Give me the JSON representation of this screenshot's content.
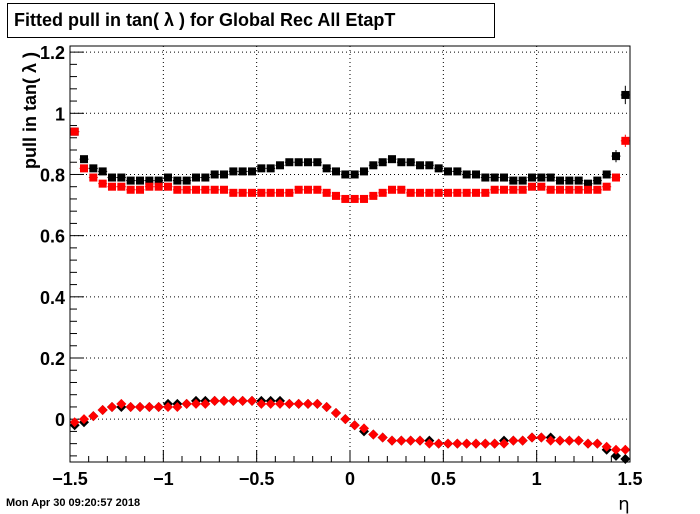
{
  "title": "Fitted pull in tan( λ ) for Global Rec All EtapT",
  "footer": "Mon Apr 30 09:20:57 2018",
  "chart_data": {
    "type": "scatter",
    "xlabel": "η",
    "ylabel": "pull in tan( λ )",
    "xlim": [
      -1.5,
      1.5
    ],
    "ylim": [
      -0.14,
      1.22
    ],
    "xticks": [
      "−1.5",
      "−1",
      "−0.5",
      "0",
      "0.5",
      "1",
      "1.5"
    ],
    "xtick_values": [
      -1.5,
      -1,
      -0.5,
      0,
      0.5,
      1,
      1.5
    ],
    "yticks": [
      "0",
      "0.2",
      "0.4",
      "0.6",
      "0.8",
      "1",
      "1.2"
    ],
    "ytick_values": [
      0,
      0.2,
      0.4,
      0.6,
      0.8,
      1.0,
      1.2
    ],
    "grid": true,
    "x": [
      -1.475,
      -1.425,
      -1.375,
      -1.325,
      -1.275,
      -1.225,
      -1.175,
      -1.125,
      -1.075,
      -1.025,
      -0.975,
      -0.925,
      -0.875,
      -0.825,
      -0.775,
      -0.725,
      -0.675,
      -0.625,
      -0.575,
      -0.525,
      -0.475,
      -0.425,
      -0.375,
      -0.325,
      -0.275,
      -0.225,
      -0.175,
      -0.125,
      -0.075,
      -0.025,
      0.025,
      0.075,
      0.125,
      0.175,
      0.225,
      0.275,
      0.325,
      0.375,
      0.425,
      0.475,
      0.525,
      0.575,
      0.625,
      0.675,
      0.725,
      0.775,
      0.825,
      0.875,
      0.925,
      0.975,
      1.025,
      1.075,
      1.125,
      1.175,
      1.225,
      1.275,
      1.325,
      1.375,
      1.425,
      1.475
    ],
    "series": [
      {
        "marker": "square",
        "color": "#000000",
        "values": [
          0.94,
          0.85,
          0.82,
          0.81,
          0.79,
          0.79,
          0.78,
          0.78,
          0.78,
          0.78,
          0.79,
          0.78,
          0.78,
          0.79,
          0.79,
          0.8,
          0.8,
          0.81,
          0.81,
          0.81,
          0.82,
          0.82,
          0.83,
          0.84,
          0.84,
          0.84,
          0.84,
          0.82,
          0.81,
          0.8,
          0.8,
          0.81,
          0.83,
          0.84,
          0.85,
          0.84,
          0.84,
          0.83,
          0.83,
          0.82,
          0.81,
          0.81,
          0.8,
          0.8,
          0.79,
          0.79,
          0.79,
          0.78,
          0.78,
          0.79,
          0.79,
          0.79,
          0.78,
          0.78,
          0.78,
          0.77,
          0.78,
          0.8,
          0.86,
          1.06
        ],
        "errors": [
          0.01,
          0.01,
          0.01,
          0.01,
          0.01,
          0.01,
          0.01,
          0.01,
          0.01,
          0.01,
          0.01,
          0.01,
          0.01,
          0.01,
          0.01,
          0.01,
          0.01,
          0.01,
          0.01,
          0.01,
          0.01,
          0.01,
          0.01,
          0.01,
          0.01,
          0.01,
          0.01,
          0.01,
          0.01,
          0.01,
          0.01,
          0.01,
          0.01,
          0.01,
          0.01,
          0.01,
          0.01,
          0.01,
          0.01,
          0.01,
          0.01,
          0.01,
          0.01,
          0.01,
          0.01,
          0.01,
          0.01,
          0.01,
          0.01,
          0.01,
          0.01,
          0.01,
          0.01,
          0.01,
          0.01,
          0.01,
          0.01,
          0.01,
          0.02,
          0.03
        ]
      },
      {
        "marker": "square",
        "color": "#ff0000",
        "values": [
          0.94,
          0.82,
          0.79,
          0.77,
          0.76,
          0.76,
          0.75,
          0.75,
          0.76,
          0.76,
          0.76,
          0.75,
          0.75,
          0.75,
          0.75,
          0.75,
          0.75,
          0.74,
          0.74,
          0.74,
          0.74,
          0.74,
          0.74,
          0.74,
          0.75,
          0.75,
          0.75,
          0.74,
          0.73,
          0.72,
          0.72,
          0.72,
          0.73,
          0.74,
          0.75,
          0.75,
          0.74,
          0.74,
          0.74,
          0.74,
          0.74,
          0.74,
          0.74,
          0.74,
          0.74,
          0.75,
          0.75,
          0.75,
          0.75,
          0.76,
          0.76,
          0.75,
          0.75,
          0.75,
          0.75,
          0.75,
          0.75,
          0.76,
          0.79,
          0.91
        ],
        "errors": [
          0.01,
          0.01,
          0.01,
          0.01,
          0.01,
          0.01,
          0.01,
          0.01,
          0.01,
          0.01,
          0.01,
          0.01,
          0.01,
          0.01,
          0.01,
          0.01,
          0.01,
          0.01,
          0.01,
          0.01,
          0.01,
          0.01,
          0.01,
          0.01,
          0.01,
          0.01,
          0.01,
          0.01,
          0.01,
          0.01,
          0.01,
          0.01,
          0.01,
          0.01,
          0.01,
          0.01,
          0.01,
          0.01,
          0.01,
          0.01,
          0.01,
          0.01,
          0.01,
          0.01,
          0.01,
          0.01,
          0.01,
          0.01,
          0.01,
          0.01,
          0.01,
          0.01,
          0.01,
          0.01,
          0.01,
          0.01,
          0.01,
          0.01,
          0.01,
          0.02
        ]
      },
      {
        "marker": "diamond",
        "color": "#000000",
        "values": [
          -0.02,
          -0.01,
          0.01,
          0.03,
          0.04,
          0.04,
          0.04,
          0.04,
          0.04,
          0.04,
          0.05,
          0.05,
          0.05,
          0.06,
          0.06,
          0.06,
          0.06,
          0.06,
          0.06,
          0.06,
          0.06,
          0.06,
          0.06,
          0.05,
          0.05,
          0.05,
          0.05,
          0.04,
          0.02,
          0.0,
          -0.02,
          -0.04,
          -0.05,
          -0.06,
          -0.07,
          -0.07,
          -0.07,
          -0.07,
          -0.07,
          -0.08,
          -0.08,
          -0.08,
          -0.08,
          -0.08,
          -0.08,
          -0.08,
          -0.07,
          -0.07,
          -0.07,
          -0.06,
          -0.06,
          -0.06,
          -0.07,
          -0.07,
          -0.07,
          -0.08,
          -0.08,
          -0.1,
          -0.12,
          -0.13
        ],
        "errors": [
          0.008,
          0.008,
          0.008,
          0.008,
          0.008,
          0.008,
          0.008,
          0.008,
          0.008,
          0.008,
          0.008,
          0.008,
          0.008,
          0.008,
          0.008,
          0.008,
          0.008,
          0.008,
          0.008,
          0.008,
          0.008,
          0.008,
          0.008,
          0.008,
          0.008,
          0.008,
          0.008,
          0.008,
          0.008,
          0.008,
          0.008,
          0.008,
          0.008,
          0.008,
          0.008,
          0.008,
          0.008,
          0.008,
          0.008,
          0.008,
          0.008,
          0.008,
          0.008,
          0.008,
          0.008,
          0.008,
          0.008,
          0.008,
          0.008,
          0.008,
          0.008,
          0.008,
          0.008,
          0.008,
          0.008,
          0.008,
          0.008,
          0.008,
          0.012,
          0.015
        ]
      },
      {
        "marker": "diamond",
        "color": "#ff0000",
        "values": [
          -0.01,
          0.0,
          0.01,
          0.03,
          0.04,
          0.05,
          0.04,
          0.04,
          0.04,
          0.04,
          0.04,
          0.04,
          0.05,
          0.05,
          0.05,
          0.06,
          0.06,
          0.06,
          0.06,
          0.06,
          0.05,
          0.05,
          0.05,
          0.05,
          0.05,
          0.05,
          0.05,
          0.04,
          0.02,
          0.0,
          -0.02,
          -0.03,
          -0.05,
          -0.06,
          -0.07,
          -0.07,
          -0.07,
          -0.07,
          -0.08,
          -0.08,
          -0.08,
          -0.08,
          -0.08,
          -0.08,
          -0.08,
          -0.08,
          -0.08,
          -0.07,
          -0.07,
          -0.06,
          -0.06,
          -0.07,
          -0.07,
          -0.07,
          -0.07,
          -0.08,
          -0.08,
          -0.09,
          -0.1,
          -0.1
        ],
        "errors": [
          0.008,
          0.008,
          0.008,
          0.008,
          0.008,
          0.008,
          0.008,
          0.008,
          0.008,
          0.008,
          0.008,
          0.008,
          0.008,
          0.008,
          0.008,
          0.008,
          0.008,
          0.008,
          0.008,
          0.008,
          0.008,
          0.008,
          0.008,
          0.008,
          0.008,
          0.008,
          0.008,
          0.008,
          0.008,
          0.008,
          0.008,
          0.008,
          0.008,
          0.008,
          0.008,
          0.008,
          0.008,
          0.008,
          0.008,
          0.008,
          0.008,
          0.008,
          0.008,
          0.008,
          0.008,
          0.008,
          0.008,
          0.008,
          0.008,
          0.008,
          0.008,
          0.008,
          0.008,
          0.008,
          0.008,
          0.008,
          0.008,
          0.008,
          0.012,
          0.015
        ]
      }
    ]
  }
}
